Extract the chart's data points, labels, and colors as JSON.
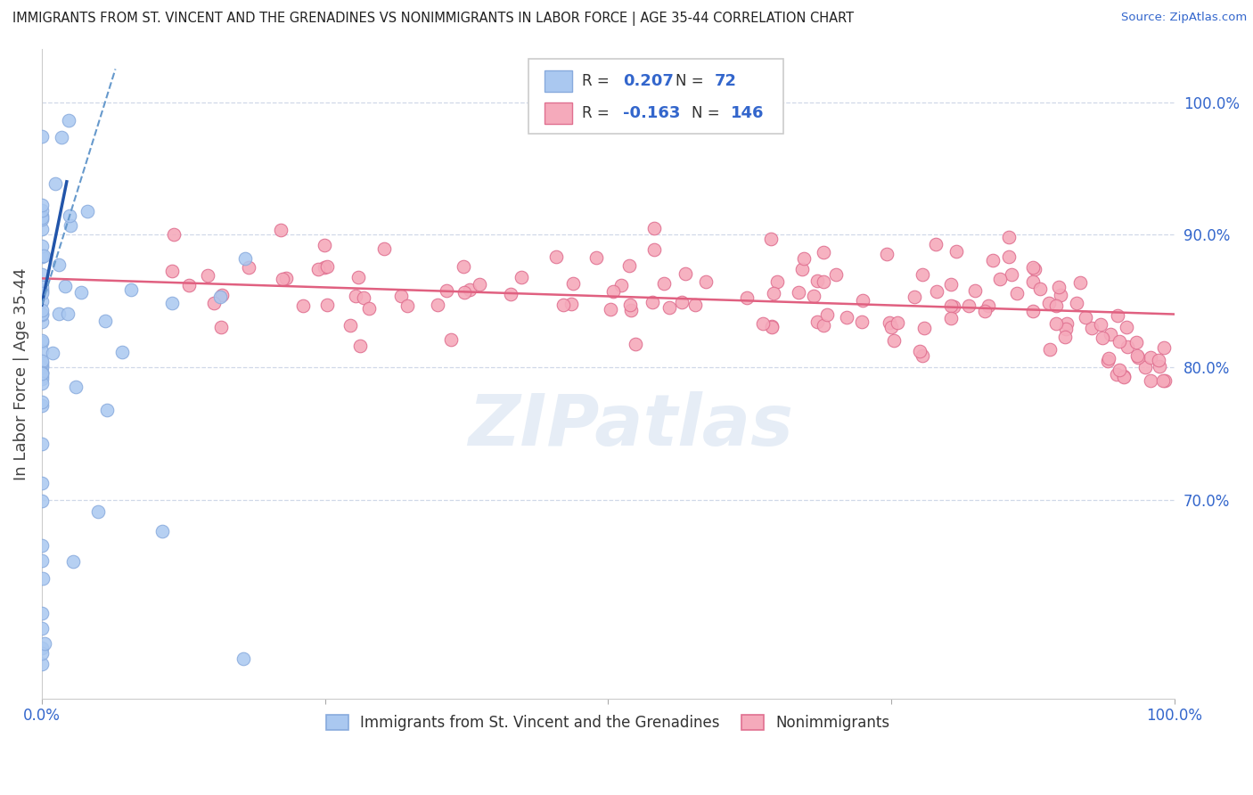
{
  "title": "IMMIGRANTS FROM ST. VINCENT AND THE GRENADINES VS NONIMMIGRANTS IN LABOR FORCE | AGE 35-44 CORRELATION CHART",
  "source": "Source: ZipAtlas.com",
  "ylabel": "In Labor Force | Age 35-44",
  "xmin": 0.0,
  "xmax": 1.0,
  "ymin": 0.55,
  "ymax": 1.04,
  "yticks": [
    0.7,
    0.8,
    0.9,
    1.0
  ],
  "ytick_labels": [
    "70.0%",
    "80.0%",
    "90.0%",
    "100.0%"
  ],
  "grid_color": "#d0d8e8",
  "background_color": "#ffffff",
  "blue_color": "#aac8f0",
  "blue_edge_color": "#88aadd",
  "pink_color": "#f5aabb",
  "pink_edge_color": "#e07090",
  "blue_line_color": "#2255aa",
  "blue_dash_color": "#6699cc",
  "pink_line_color": "#e06080",
  "R_blue": 0.207,
  "N_blue": 72,
  "R_pink": -0.163,
  "N_pink": 146,
  "legend_label_blue": "Immigrants from St. Vincent and the Grenadines",
  "legend_label_pink": "Nonimmigrants",
  "watermark": "ZIPatlas",
  "tick_color": "#3366cc",
  "title_color": "#222222",
  "source_color": "#3366cc",
  "ylabel_color": "#444444"
}
